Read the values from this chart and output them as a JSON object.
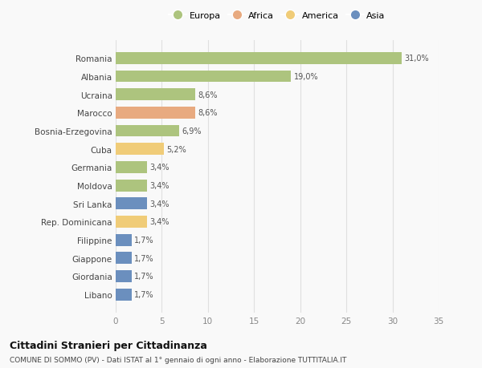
{
  "countries": [
    "Romania",
    "Albania",
    "Ucraina",
    "Marocco",
    "Bosnia-Erzegovina",
    "Cuba",
    "Germania",
    "Moldova",
    "Sri Lanka",
    "Rep. Dominicana",
    "Filippine",
    "Giappone",
    "Giordania",
    "Libano"
  ],
  "values": [
    31.0,
    19.0,
    8.6,
    8.6,
    6.9,
    5.2,
    3.4,
    3.4,
    3.4,
    3.4,
    1.7,
    1.7,
    1.7,
    1.7
  ],
  "labels": [
    "31,0%",
    "19,0%",
    "8,6%",
    "8,6%",
    "6,9%",
    "5,2%",
    "3,4%",
    "3,4%",
    "3,4%",
    "3,4%",
    "1,7%",
    "1,7%",
    "1,7%",
    "1,7%"
  ],
  "categories": [
    "Europa",
    "Africa",
    "America",
    "Asia"
  ],
  "bar_colors": [
    "#adc47e",
    "#adc47e",
    "#adc47e",
    "#e8aa80",
    "#adc47e",
    "#f0cc78",
    "#adc47e",
    "#adc47e",
    "#6b8fbe",
    "#f0cc78",
    "#6b8fbe",
    "#6b8fbe",
    "#6b8fbe",
    "#6b8fbe"
  ],
  "legend_colors": [
    "#adc47e",
    "#e8aa80",
    "#f0cc78",
    "#6b8fbe"
  ],
  "title": "Cittadini Stranieri per Cittadinanza",
  "subtitle": "COMUNE DI SOMMO (PV) - Dati ISTAT al 1° gennaio di ogni anno - Elaborazione TUTTITALIA.IT",
  "xlim": [
    0,
    35
  ],
  "xticks": [
    0,
    5,
    10,
    15,
    20,
    25,
    30,
    35
  ],
  "background_color": "#f9f9f9",
  "grid_color": "#e0e0e0"
}
